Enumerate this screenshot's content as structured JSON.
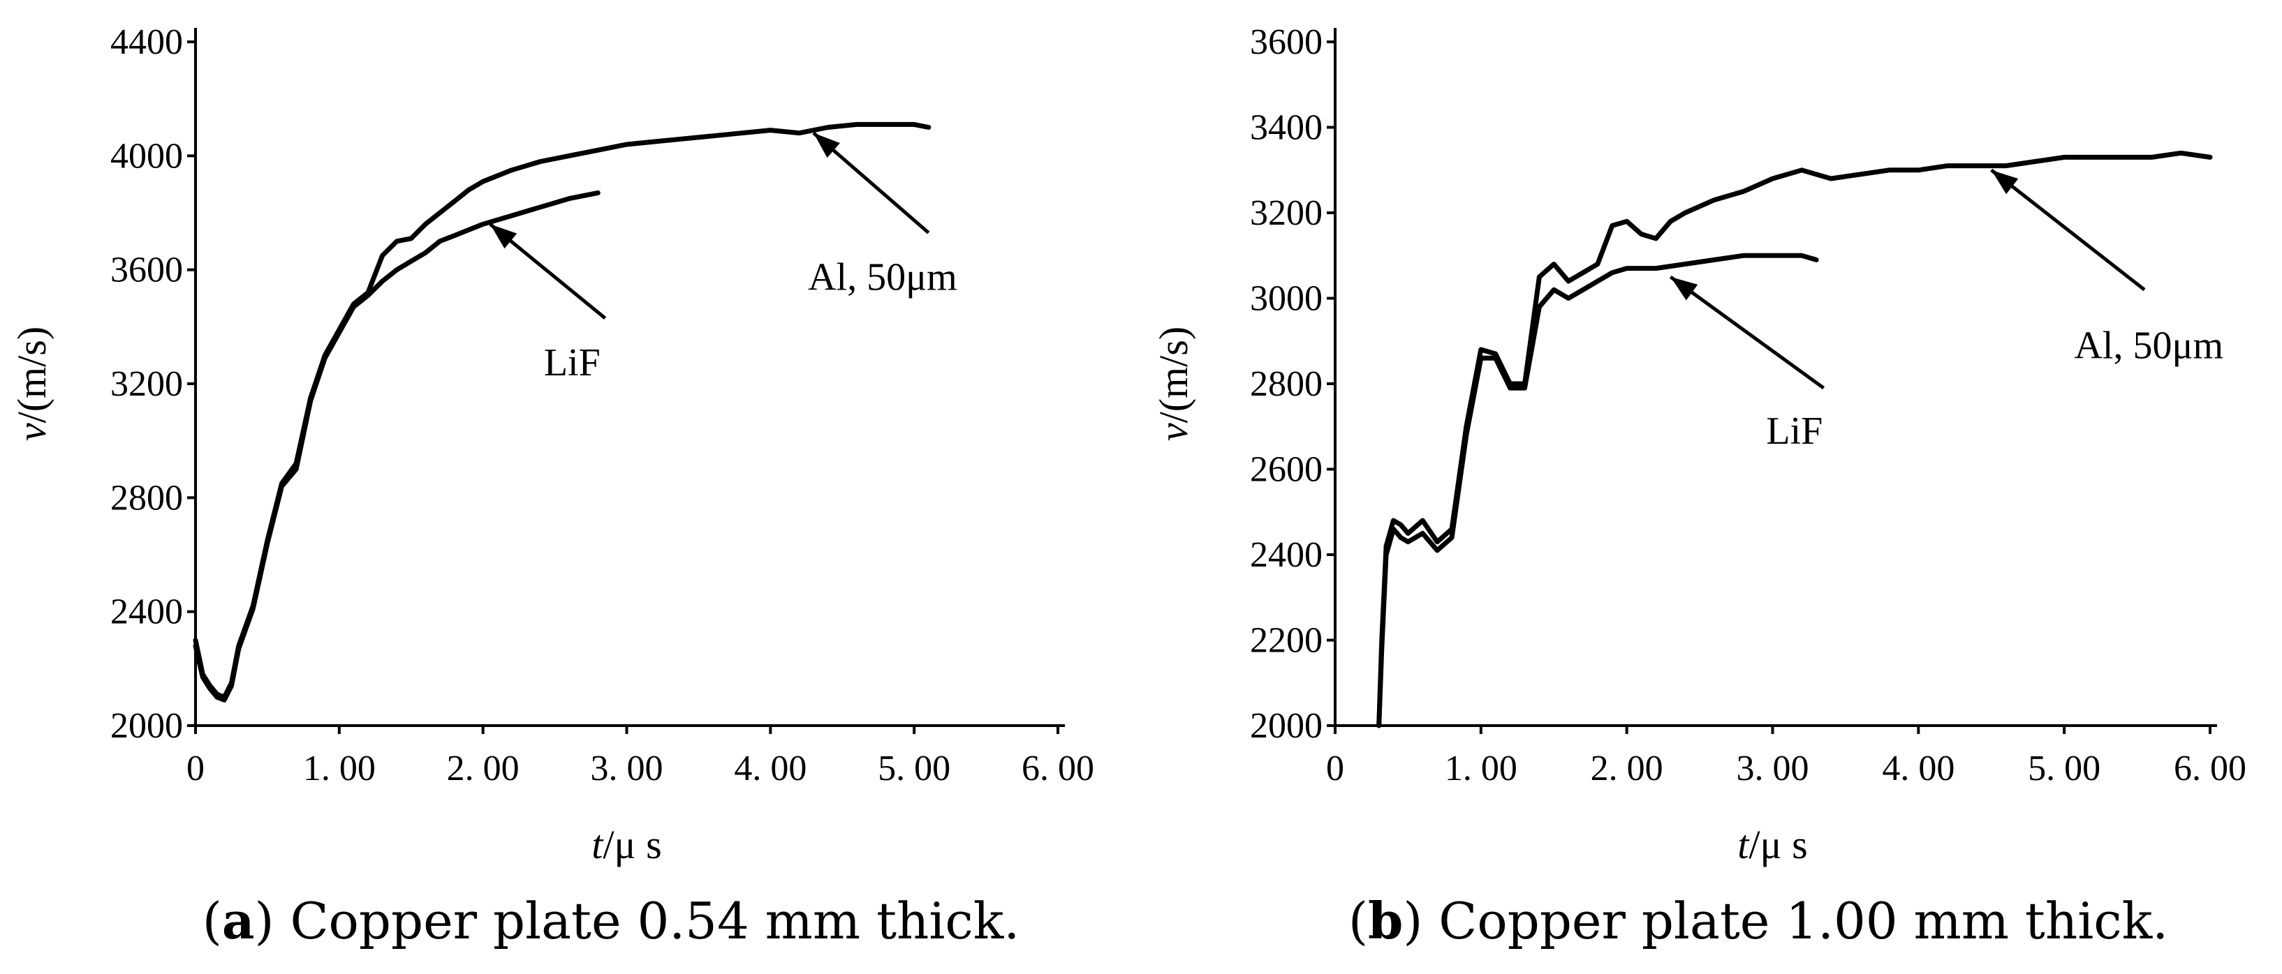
{
  "chart_data": [
    {
      "id": "a",
      "type": "line",
      "caption_letter": "a",
      "caption_text": "Copper plate 0.54 mm thick.",
      "xlabel_var": "t",
      "xlabel_unit": "/μ s",
      "ylabel_var": "v",
      "ylabel_unit": "/(m/s)",
      "xlim": [
        0,
        6
      ],
      "ylim": [
        2000,
        4400
      ],
      "xticks": [
        0,
        1,
        2,
        3,
        4,
        5,
        6
      ],
      "xtick_labels": [
        "0",
        "1. 00",
        "2. 00",
        "3. 00",
        "4. 00",
        "5. 00",
        "6. 00"
      ],
      "yticks": [
        2000,
        2400,
        2800,
        3200,
        3600,
        4000,
        4400
      ],
      "ytick_labels": [
        "2000",
        "2400",
        "2800",
        "3200",
        "3600",
        "4000",
        "4400"
      ],
      "series": [
        {
          "name": "Al, 50μm",
          "x": [
            0,
            0.05,
            0.1,
            0.15,
            0.2,
            0.25,
            0.3,
            0.4,
            0.5,
            0.6,
            0.7,
            0.8,
            0.9,
            1.0,
            1.1,
            1.2,
            1.3,
            1.4,
            1.5,
            1.6,
            1.7,
            1.8,
            1.9,
            2.0,
            2.2,
            2.4,
            2.6,
            2.8,
            3.0,
            3.2,
            3.4,
            3.6,
            3.8,
            4.0,
            4.2,
            4.4,
            4.6,
            4.8,
            5.0,
            5.1
          ],
          "values": [
            2300,
            2180,
            2140,
            2110,
            2100,
            2150,
            2280,
            2420,
            2650,
            2850,
            2920,
            3150,
            3300,
            3390,
            3480,
            3520,
            3650,
            3700,
            3710,
            3760,
            3800,
            3840,
            3880,
            3910,
            3950,
            3980,
            4000,
            4020,
            4040,
            4050,
            4060,
            4070,
            4080,
            4090,
            4080,
            4100,
            4110,
            4110,
            4110,
            4100
          ]
        },
        {
          "name": "LiF",
          "x": [
            0,
            0.05,
            0.1,
            0.15,
            0.2,
            0.25,
            0.3,
            0.4,
            0.5,
            0.6,
            0.7,
            0.8,
            0.9,
            1.0,
            1.1,
            1.2,
            1.3,
            1.4,
            1.5,
            1.6,
            1.7,
            1.8,
            1.9,
            2.0,
            2.2,
            2.4,
            2.6,
            2.8
          ],
          "values": [
            2280,
            2170,
            2130,
            2100,
            2090,
            2140,
            2270,
            2410,
            2640,
            2840,
            2900,
            3140,
            3290,
            3380,
            3470,
            3510,
            3560,
            3600,
            3630,
            3660,
            3700,
            3720,
            3740,
            3760,
            3790,
            3820,
            3850,
            3870
          ]
        }
      ],
      "annotations": [
        {
          "text": "LiF",
          "x": 2.62,
          "y": 3230,
          "arrow_from": [
            2.85,
            3430
          ],
          "arrow_to": [
            2.05,
            3760
          ]
        },
        {
          "text": "Al, 50μm",
          "x": 4.78,
          "y": 3530,
          "arrow_from": [
            5.1,
            3730
          ],
          "arrow_to": [
            4.3,
            4080
          ]
        }
      ]
    },
    {
      "id": "b",
      "type": "line",
      "caption_letter": "b",
      "caption_text": "Copper plate 1.00 mm thick.",
      "xlabel_var": "t",
      "xlabel_unit": "/μ s",
      "ylabel_var": "v",
      "ylabel_unit": "/(m/s)",
      "xlim": [
        0,
        6
      ],
      "ylim": [
        2000,
        3600
      ],
      "xticks": [
        0,
        1,
        2,
        3,
        4,
        5,
        6
      ],
      "xtick_labels": [
        "0",
        "1. 00",
        "2. 00",
        "3. 00",
        "4. 00",
        "5. 00",
        "6. 00"
      ],
      "yticks": [
        2000,
        2200,
        2400,
        2600,
        2800,
        3000,
        3200,
        3400,
        3600
      ],
      "ytick_labels": [
        "2000",
        "2200",
        "2400",
        "2600",
        "2800",
        "3000",
        "3200",
        "3400",
        "3600"
      ],
      "series": [
        {
          "name": "Al, 50μm",
          "x": [
            0.3,
            0.32,
            0.35,
            0.4,
            0.45,
            0.5,
            0.6,
            0.7,
            0.8,
            0.9,
            1.0,
            1.1,
            1.2,
            1.3,
            1.4,
            1.5,
            1.6,
            1.7,
            1.8,
            1.9,
            2.0,
            2.1,
            2.2,
            2.3,
            2.4,
            2.6,
            2.8,
            3.0,
            3.2,
            3.4,
            3.6,
            3.8,
            4.0,
            4.2,
            4.4,
            4.6,
            4.8,
            5.0,
            5.2,
            5.4,
            5.6,
            5.8,
            6.0
          ],
          "values": [
            2000,
            2200,
            2420,
            2480,
            2470,
            2450,
            2480,
            2430,
            2460,
            2700,
            2880,
            2870,
            2800,
            2800,
            3050,
            3080,
            3040,
            3060,
            3080,
            3170,
            3180,
            3150,
            3140,
            3180,
            3200,
            3230,
            3250,
            3280,
            3300,
            3280,
            3290,
            3300,
            3300,
            3310,
            3310,
            3310,
            3320,
            3330,
            3330,
            3330,
            3330,
            3340,
            3330
          ]
        },
        {
          "name": "LiF",
          "x": [
            0.3,
            0.32,
            0.35,
            0.4,
            0.45,
            0.5,
            0.6,
            0.7,
            0.8,
            0.9,
            1.0,
            1.1,
            1.2,
            1.3,
            1.4,
            1.5,
            1.6,
            1.7,
            1.8,
            1.9,
            2.0,
            2.2,
            2.4,
            2.6,
            2.8,
            3.0,
            3.2,
            3.3
          ],
          "values": [
            2000,
            2180,
            2400,
            2460,
            2440,
            2430,
            2450,
            2410,
            2440,
            2680,
            2860,
            2860,
            2790,
            2790,
            2980,
            3020,
            3000,
            3020,
            3040,
            3060,
            3070,
            3070,
            3080,
            3090,
            3100,
            3100,
            3100,
            3090
          ]
        }
      ],
      "annotations": [
        {
          "text": "LiF",
          "x": 3.15,
          "y": 2660,
          "arrow_from": [
            3.35,
            2790
          ],
          "arrow_to": [
            2.3,
            3050
          ]
        },
        {
          "text": "Al, 50μm",
          "x": 5.58,
          "y": 2860,
          "arrow_from": [
            5.55,
            3020
          ],
          "arrow_to": [
            4.5,
            3300
          ]
        }
      ]
    }
  ]
}
